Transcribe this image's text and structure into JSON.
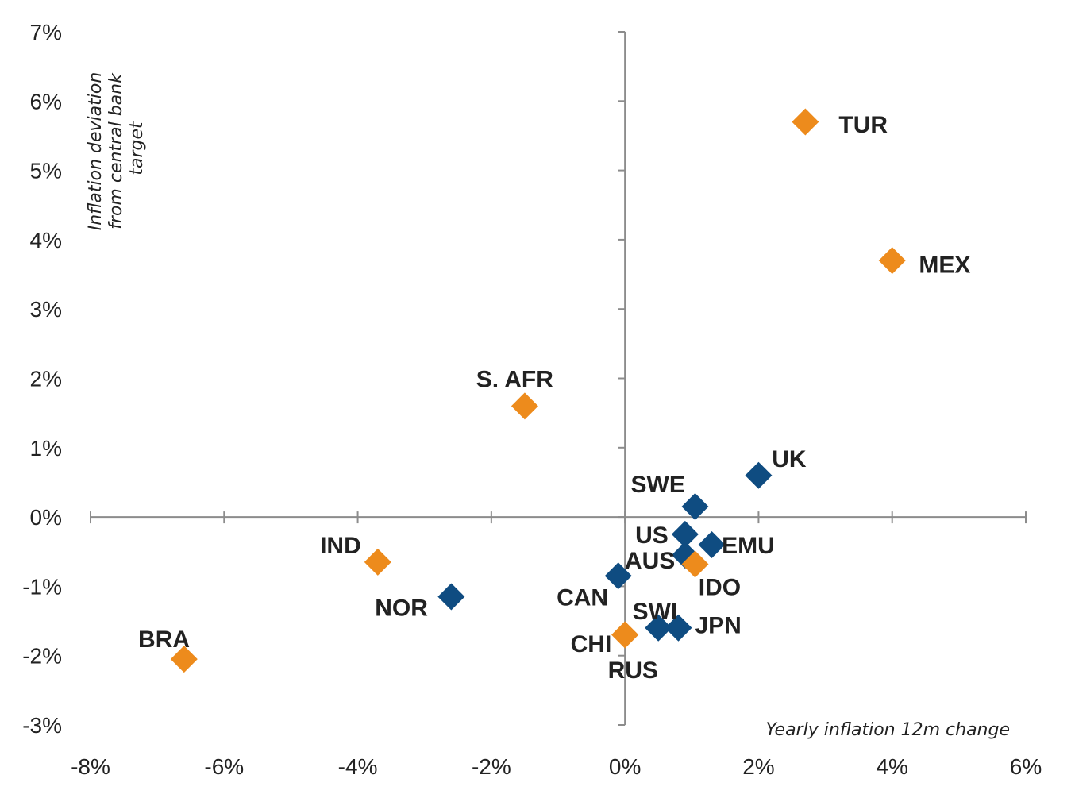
{
  "chart_data": {
    "type": "scatter",
    "xlabel": "Yearly inflation 12m change",
    "ylabel_lines": [
      "Inflation deviation",
      "from central bank",
      "target"
    ],
    "xlim": [
      -8,
      6
    ],
    "ylim": [
      -3,
      7
    ],
    "x_ticks": [
      -8,
      -6,
      -4,
      -2,
      0,
      2,
      4,
      6
    ],
    "y_ticks": [
      -3,
      -2,
      -1,
      0,
      1,
      2,
      3,
      4,
      5,
      6,
      7
    ],
    "x_tick_labels": [
      "-8%",
      "-6%",
      "-4%",
      "-2%",
      "0%",
      "2%",
      "4%",
      "6%"
    ],
    "y_tick_labels": [
      "-3%",
      "-2%",
      "-1%",
      "0%",
      "1%",
      "2%",
      "3%",
      "4%",
      "5%",
      "6%",
      "7%"
    ],
    "colors": {
      "orange": "#ed8b1c",
      "blue": "#0f4c81",
      "axis": "#8c8c8c"
    },
    "points": [
      {
        "label": "TUR",
        "x": 2.7,
        "y": 5.7,
        "color": "orange",
        "lx": 3.2,
        "ly": 5.67,
        "anchor": "start"
      },
      {
        "label": "MEX",
        "x": 4.0,
        "y": 3.7,
        "color": "orange",
        "lx": 4.4,
        "ly": 3.65,
        "anchor": "start"
      },
      {
        "label": "S. AFR",
        "x": -1.5,
        "y": 1.6,
        "color": "orange",
        "lx": -1.65,
        "ly": 2.0,
        "anchor": "middle"
      },
      {
        "label": "UK",
        "x": 2.0,
        "y": 0.6,
        "color": "blue",
        "lx": 2.2,
        "ly": 0.85,
        "anchor": "start"
      },
      {
        "label": "SWE",
        "x": 1.05,
        "y": 0.15,
        "color": "blue",
        "lx": 0.9,
        "ly": 0.48,
        "anchor": "end"
      },
      {
        "label": "US",
        "x": 0.9,
        "y": -0.25,
        "color": "blue",
        "lx": 0.65,
        "ly": -0.25,
        "anchor": "end"
      },
      {
        "label": "EMU",
        "x": 1.3,
        "y": -0.4,
        "color": "blue",
        "lx": 1.45,
        "ly": -0.4,
        "anchor": "start"
      },
      {
        "label": "AUS",
        "x": 0.9,
        "y": -0.55,
        "color": "blue",
        "lx": 0.75,
        "ly": -0.62,
        "anchor": "end"
      },
      {
        "label": "IDO",
        "x": 1.05,
        "y": -0.68,
        "color": "orange",
        "lx": 1.1,
        "ly": -1.0,
        "anchor": "start"
      },
      {
        "label": "CAN",
        "x": -0.1,
        "y": -0.85,
        "color": "blue",
        "lx": -0.25,
        "ly": -1.15,
        "anchor": "end"
      },
      {
        "label": "IND",
        "x": -3.7,
        "y": -0.65,
        "color": "orange",
        "lx": -3.95,
        "ly": -0.4,
        "anchor": "end"
      },
      {
        "label": "NOR",
        "x": -2.6,
        "y": -1.15,
        "color": "blue",
        "lx": -2.95,
        "ly": -1.3,
        "anchor": "end"
      },
      {
        "label": "SWI",
        "x": 0.5,
        "y": -1.6,
        "color": "blue",
        "lx": 0.45,
        "ly": -1.35,
        "anchor": "middle"
      },
      {
        "label": "JPN",
        "x": 0.8,
        "y": -1.6,
        "color": "blue",
        "lx": 1.05,
        "ly": -1.55,
        "anchor": "start"
      },
      {
        "label": "CHI",
        "x": 0.0,
        "y": -1.7,
        "color": "orange",
        "lx": -0.2,
        "ly": -1.82,
        "anchor": "end"
      },
      {
        "label": "RUS",
        "x": 0.0,
        "y": -1.7,
        "color": "orange",
        "lx": 0.12,
        "ly": -2.2,
        "anchor": "middle"
      },
      {
        "label": "BRA",
        "x": -6.6,
        "y": -2.05,
        "color": "orange",
        "lx": -6.9,
        "ly": -1.75,
        "anchor": "middle"
      }
    ]
  }
}
